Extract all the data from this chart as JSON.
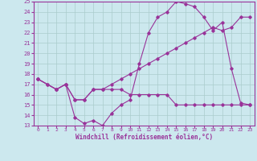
{
  "xlabel": "Windchill (Refroidissement éolien,°C)",
  "bg_color": "#cce8ee",
  "grid_color": "#aacccc",
  "line_color": "#993399",
  "xlim": [
    -0.5,
    23.5
  ],
  "ylim": [
    13,
    25
  ],
  "xticks": [
    0,
    1,
    2,
    3,
    4,
    5,
    6,
    7,
    8,
    9,
    10,
    11,
    12,
    13,
    14,
    15,
    16,
    17,
    18,
    19,
    20,
    21,
    22,
    23
  ],
  "yticks": [
    13,
    14,
    15,
    16,
    17,
    18,
    19,
    20,
    21,
    22,
    23,
    24,
    25
  ],
  "line1_x": [
    0,
    1,
    2,
    3,
    4,
    5,
    6,
    7,
    8,
    9,
    10,
    11,
    12,
    13,
    14,
    15,
    16,
    17,
    18,
    19,
    20,
    21,
    22,
    23
  ],
  "line1_y": [
    17.5,
    17.0,
    16.5,
    17.0,
    13.8,
    13.2,
    13.5,
    13.0,
    14.2,
    15.0,
    15.5,
    19.0,
    22.0,
    23.5,
    24.0,
    25.0,
    24.8,
    24.5,
    23.5,
    22.2,
    23.0,
    18.5,
    15.2,
    15.0
  ],
  "line2_x": [
    0,
    2,
    3,
    4,
    5,
    6,
    7,
    8,
    9,
    10,
    11,
    12,
    13,
    14,
    15,
    16,
    17,
    18,
    19,
    20,
    21,
    22,
    23
  ],
  "line2_y": [
    17.5,
    16.5,
    17.0,
    15.5,
    15.5,
    16.5,
    16.5,
    16.5,
    16.5,
    16.0,
    16.0,
    16.0,
    16.0,
    16.0,
    15.0,
    15.0,
    15.0,
    15.0,
    15.0,
    15.0,
    15.0,
    15.0,
    15.0
  ],
  "line3_x": [
    0,
    1,
    2,
    3,
    4,
    5,
    6,
    7,
    8,
    9,
    10,
    11,
    12,
    13,
    14,
    15,
    16,
    17,
    18,
    19,
    20,
    21,
    22,
    23
  ],
  "line3_y": [
    17.5,
    17.0,
    16.5,
    17.0,
    15.5,
    15.5,
    16.5,
    16.5,
    17.0,
    17.5,
    18.0,
    18.5,
    19.0,
    19.5,
    20.0,
    20.5,
    21.0,
    21.5,
    22.0,
    22.5,
    22.2,
    22.5,
    23.5,
    23.5
  ]
}
